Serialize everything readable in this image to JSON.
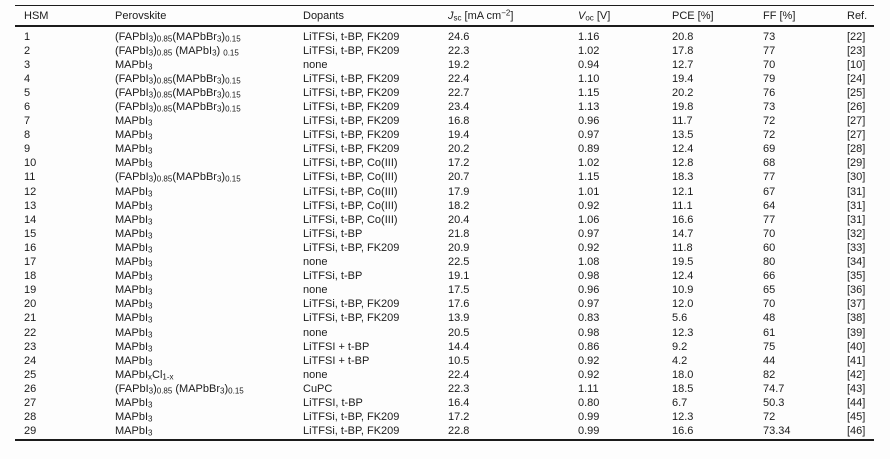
{
  "table": {
    "columns": [
      {
        "key": "hsm",
        "label": "HSM"
      },
      {
        "key": "perovskite",
        "label": "Perovskite"
      },
      {
        "key": "dopants",
        "label": "Dopants"
      },
      {
        "key": "jsc",
        "label": "*J*~sc~ [mA cm^−2^]"
      },
      {
        "key": "voc",
        "label": "*V*~oc~ [V]"
      },
      {
        "key": "pce",
        "label": "PCE [%]"
      },
      {
        "key": "ff",
        "label": "FF [%]"
      },
      {
        "key": "ref",
        "label": "Ref."
      }
    ],
    "rows": [
      {
        "hsm": "1",
        "perovskite": "(FAPbI~3~)~0.85~(MAPbBr~3~)~0.15~",
        "dopants": "LiTFSi, t-BP, FK209",
        "jsc": "24.6",
        "voc": "1.16",
        "pce": "20.8",
        "ff": "73",
        "ref": "[22]"
      },
      {
        "hsm": "2",
        "perovskite": "(FAPbI~3~)~0.85~ (MAPbI~3~) ~0.15~",
        "dopants": "LiTFSi, t-BP, FK209",
        "jsc": "22.3",
        "voc": "1.02",
        "pce": "17.8",
        "ff": "77",
        "ref": "[23]"
      },
      {
        "hsm": "3",
        "perovskite": "MAPbI~3~",
        "dopants": "none",
        "jsc": "19.2",
        "voc": "0.94",
        "pce": "12.7",
        "ff": "70",
        "ref": "[10]"
      },
      {
        "hsm": "4",
        "perovskite": "(FAPbI~3~)~0.85~(MAPbBr~3~)~0.15~",
        "dopants": "LiTFSi, t-BP, FK209",
        "jsc": "22.4",
        "voc": "1.10",
        "pce": "19.4",
        "ff": "79",
        "ref": "[24]"
      },
      {
        "hsm": "5",
        "perovskite": "(FAPbI~3~)~0.85~(MAPbBr~3~)~0.15~",
        "dopants": "LiTFSi, t-BP, FK209",
        "jsc": "22.7",
        "voc": "1.15",
        "pce": "20.2",
        "ff": "76",
        "ref": "[25]"
      },
      {
        "hsm": "6",
        "perovskite": "(FAPbI~3~)~0.85~(MAPbBr~3~)~0.15~",
        "dopants": "LiTFSi, t-BP, FK209",
        "jsc": "23.4",
        "voc": "1.13",
        "pce": "19.8",
        "ff": "73",
        "ref": "[26]"
      },
      {
        "hsm": "7",
        "perovskite": "MAPbI~3~",
        "dopants": "LiTFSi, t-BP, FK209",
        "jsc": "16.8",
        "voc": "0.96",
        "pce": "11.7",
        "ff": "72",
        "ref": "[27]"
      },
      {
        "hsm": "8",
        "perovskite": "MAPbI~3~",
        "dopants": "LiTFSi, t-BP, FK209",
        "jsc": "19.4",
        "voc": "0.97",
        "pce": "13.5",
        "ff": "72",
        "ref": "[27]"
      },
      {
        "hsm": "9",
        "perovskite": "MAPbI~3~",
        "dopants": "LiTFSi, t-BP, FK209",
        "jsc": "20.2",
        "voc": "0.89",
        "pce": "12.4",
        "ff": "69",
        "ref": "[28]"
      },
      {
        "hsm": "10",
        "perovskite": "MAPbI~3~",
        "dopants": "LiTFSi, t-BP, Co(III)",
        "jsc": "17.2",
        "voc": "1.02",
        "pce": "12.8",
        "ff": "68",
        "ref": "[29]"
      },
      {
        "hsm": "11",
        "perovskite": "(FAPbI~3~)~0.85~(MAPbBr~3~)~0.15~",
        "dopants": "LiTFSi, t-BP, Co(III)",
        "jsc": "20.7",
        "voc": "1.15",
        "pce": "18.3",
        "ff": "77",
        "ref": "[30]"
      },
      {
        "hsm": "12",
        "perovskite": "MAPbI~3~",
        "dopants": "LiTFSi, t-BP, Co(III)",
        "jsc": "17.9",
        "voc": "1.01",
        "pce": "12.1",
        "ff": "67",
        "ref": "[31]"
      },
      {
        "hsm": "13",
        "perovskite": "MAPbI~3~",
        "dopants": "LiTFSi, t-BP, Co(III)",
        "jsc": "18.2",
        "voc": "0.92",
        "pce": "11.1",
        "ff": "64",
        "ref": "[31]"
      },
      {
        "hsm": "14",
        "perovskite": "MAPbI~3~",
        "dopants": "LiTFSi, t-BP, Co(III)",
        "jsc": "20.4",
        "voc": "1.06",
        "pce": "16.6",
        "ff": "77",
        "ref": "[31]"
      },
      {
        "hsm": "15",
        "perovskite": "MAPbI~3~",
        "dopants": "LiTFSi, t-BP",
        "jsc": "21.8",
        "voc": "0.97",
        "pce": "14.7",
        "ff": "70",
        "ref": "[32]"
      },
      {
        "hsm": "16",
        "perovskite": "MAPbI~3~",
        "dopants": "LiTFSi, t-BP, FK209",
        "jsc": "20.9",
        "voc": "0.92",
        "pce": "11.8",
        "ff": "60",
        "ref": "[33]"
      },
      {
        "hsm": "17",
        "perovskite": "MAPbI~3~",
        "dopants": "none",
        "jsc": "22.5",
        "voc": "1.08",
        "pce": "19.5",
        "ff": "80",
        "ref": "[34]"
      },
      {
        "hsm": "18",
        "perovskite": "MAPbI~3~",
        "dopants": "LiTFSi, t-BP",
        "jsc": "19.1",
        "voc": "0.98",
        "pce": "12.4",
        "ff": "66",
        "ref": "[35]"
      },
      {
        "hsm": "19",
        "perovskite": "MAPbI~3~",
        "dopants": "none",
        "jsc": "17.5",
        "voc": "0.96",
        "pce": "10.9",
        "ff": "65",
        "ref": "[36]"
      },
      {
        "hsm": "20",
        "perovskite": "MAPbI~3~",
        "dopants": "LiTFSi, t-BP, FK209",
        "jsc": "17.6",
        "voc": "0.97",
        "pce": "12.0",
        "ff": "70",
        "ref": "[37]"
      },
      {
        "hsm": "21",
        "perovskite": "MAPbI~3~",
        "dopants": "LiTFSi, t-BP, FK209",
        "jsc": "13.9",
        "voc": "0.83",
        "pce": "5.6",
        "ff": "48",
        "ref": "[38]"
      },
      {
        "hsm": "22",
        "perovskite": "MAPbI~3~",
        "dopants": "none",
        "jsc": "20.5",
        "voc": "0.98",
        "pce": "12.3",
        "ff": "61",
        "ref": "[39]"
      },
      {
        "hsm": "23",
        "perovskite": "MAPbI~3~",
        "dopants": "LiTFSI + t-BP",
        "jsc": "14.4",
        "voc": "0.86",
        "pce": "9.2",
        "ff": "75",
        "ref": "[40]"
      },
      {
        "hsm": "24",
        "perovskite": "MAPbI~3~",
        "dopants": "LiTFSI + t-BP",
        "jsc": "10.5",
        "voc": "0.92",
        "pce": "4.2",
        "ff": "44",
        "ref": "[41]"
      },
      {
        "hsm": "25",
        "perovskite": "MAPbI~x~Cl~1-x~",
        "dopants": "none",
        "jsc": "22.4",
        "voc": "0.92",
        "pce": "18.0",
        "ff": "82",
        "ref": "[42]"
      },
      {
        "hsm": "26",
        "perovskite": "(FAPbI~3~)~0.85~ (MAPbBr~3~)~0.15~",
        "dopants": "CuPC",
        "jsc": "22.3",
        "voc": "1.11",
        "pce": "18.5",
        "ff": "74.7",
        "ref": "[43]"
      },
      {
        "hsm": "27",
        "perovskite": "MAPbI~3~",
        "dopants": "LiTFSI, t-BP",
        "jsc": "16.4",
        "voc": "0.80",
        "pce": "6.7",
        "ff": "50.3",
        "ref": "[44]"
      },
      {
        "hsm": "28",
        "perovskite": "MAPbI~3~",
        "dopants": "LiTFSi, t-BP, FK209",
        "jsc": "17.2",
        "voc": "0.99",
        "pce": "12.3",
        "ff": "72",
        "ref": "[45]"
      },
      {
        "hsm": "29",
        "perovskite": "MAPbI~3~",
        "dopants": "LiTFSi, t-BP, FK209",
        "jsc": "22.8",
        "voc": "0.99",
        "pce": "16.6",
        "ff": "73.34",
        "ref": "[46]"
      }
    ]
  }
}
